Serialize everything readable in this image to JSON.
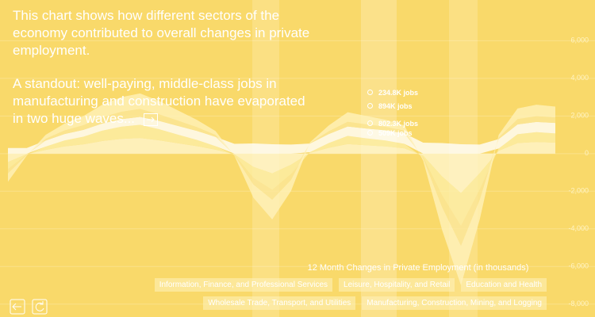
{
  "chart_data": {
    "type": "area",
    "stacked": true,
    "texts": [
      "This chart shows how different sectors of the economy contributed to overall changes in private employment.",
      "A standout: well-paying, middle-class jobs in manufacturing and construction have evaporated in two huge waves..."
    ],
    "annotations": [
      "234.8K jobs",
      "894K jobs",
      "802.3K jobs",
      "509K jobs"
    ],
    "y_label": "12 Month Changes in Private Employment (in thousands)",
    "categories": [
      null,
      null,
      null,
      null,
      null,
      null,
      null,
      null,
      null,
      null,
      null,
      null,
      null,
      null,
      null,
      null,
      null,
      null,
      null,
      null,
      null,
      null,
      null,
      null,
      null,
      null,
      null,
      null,
      null,
      null
    ],
    "ylim": [
      -8600,
      6900
    ],
    "yticks": [
      {
        "value": 6000,
        "label": "6,000"
      },
      {
        "value": 4000,
        "label": "4,000"
      },
      {
        "value": 2000,
        "label": "2,000"
      },
      0,
      {
        "value": -2000,
        "label": "-2,000"
      },
      {
        "value": -4000,
        "label": "-4,000"
      },
      {
        "value": -6000,
        "label": "-6,000"
      },
      {
        "value": -8000,
        "label": "-8,000"
      }
    ],
    "grid": true,
    "series": [
      {
        "name": "Information, Finance, and Professional Services",
        "color": "#fff6d0",
        "values": [
          -450,
          -30,
          200,
          380,
          490,
          670,
          780,
          830,
          710,
          550,
          400,
          210,
          -40,
          -700,
          -1050,
          -590,
          40,
          310,
          510,
          440,
          380,
          280,
          -110,
          -1220,
          -2100,
          -1040,
          150,
          560,
          620,
          580
        ]
      },
      {
        "name": "Leisure, Hospitality, and Retail",
        "color": "#fdeea8",
        "values": [
          -380,
          -25,
          170,
          320,
          410,
          550,
          650,
          700,
          590,
          460,
          330,
          180,
          -30,
          -590,
          -880,
          -500,
          35,
          250,
          430,
          370,
          320,
          240,
          -100,
          -1010,
          -1750,
          -870,
          120,
          470,
          520,
          490
        ]
      },
      {
        "name": "Education and Health",
        "color": "#ffffff",
        "values": [
          300,
          300,
          320,
          340,
          360,
          380,
          400,
          420,
          440,
          460,
          480,
          500,
          520,
          540,
          500,
          480,
          460,
          480,
          500,
          520,
          540,
          560,
          580,
          560,
          500,
          480,
          500,
          520,
          540,
          560
        ]
      },
      {
        "name": "Wholesale Trade, Transport, and Utilities",
        "color": "#fbe79a",
        "values": [
          -220,
          -15,
          100,
          190,
          250,
          330,
          390,
          420,
          350,
          280,
          200,
          100,
          -20,
          -350,
          -520,
          -300,
          20,
          150,
          250,
          220,
          190,
          140,
          -60,
          -610,
          -1050,
          -520,
          80,
          280,
          310,
          290
        ]
      },
      {
        "name": "Manufacturing, Construction, Mining, and Logging",
        "color": "#fff2bd",
        "values": [
          -450,
          -30,
          210,
          370,
          490,
          670,
          780,
          830,
          710,
          550,
          390,
          210,
          -30,
          -700,
          -1050,
          -590,
          45,
          310,
          510,
          450,
          370,
          280,
          -110,
          -1220,
          -2100,
          -1050,
          150,
          570,
          610,
          580
        ]
      }
    ]
  }
}
